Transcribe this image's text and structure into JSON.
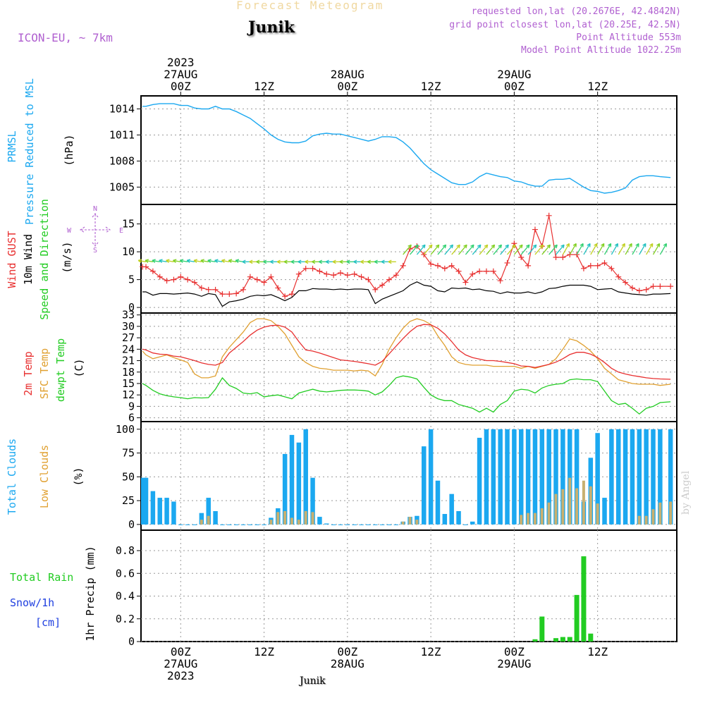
{
  "header": {
    "title": "Forecast Meteogram",
    "location": "Junik",
    "model": "ICON-EU, ~ 7km",
    "requested": "requested lon,lat (20.2676E, 42.4842N)",
    "gridpoint": "grid point closest lon,lat (20.25E, 42.5N)",
    "point_altitude": "Point Altitude 553m",
    "model_altitude": "Model Point Altitude 1022.25m",
    "credit": "by Angel",
    "footer_location": "Junik"
  },
  "colors": {
    "pressure": "#1ba8f0",
    "gust": "#e83030",
    "wind": "#000000",
    "wind_dir": "#22cc22",
    "temp2m": "#e83030",
    "sfc": "#e0a030",
    "dewpt": "#22cc22",
    "total_cloud": "#1ba8f0",
    "low_cloud": "#c8b070",
    "rain": "#22cc22",
    "snow": "#2040e0",
    "purple": "#b060d0"
  },
  "time_axis": {
    "top": [
      {
        "t": 0,
        "lines": [
          "2023",
          "27AUG",
          "00Z"
        ]
      },
      {
        "t": 12,
        "lines": [
          "12Z"
        ]
      },
      {
        "t": 24,
        "lines": [
          "28AUG",
          "00Z"
        ]
      },
      {
        "t": 36,
        "lines": [
          "12Z"
        ]
      },
      {
        "t": 48,
        "lines": [
          "29AUG",
          "00Z"
        ]
      },
      {
        "t": 60,
        "lines": [
          "12Z"
        ]
      }
    ],
    "bottom": [
      {
        "t": 0,
        "lines": [
          "00Z",
          "27AUG",
          "2023"
        ]
      },
      {
        "t": 12,
        "lines": [
          "12Z"
        ]
      },
      {
        "t": 24,
        "lines": [
          "00Z",
          "28AUG"
        ]
      },
      {
        "t": 36,
        "lines": [
          "12Z"
        ]
      },
      {
        "t": 48,
        "lines": [
          "00Z",
          "29AUG"
        ]
      },
      {
        "t": 60,
        "lines": [
          "12Z"
        ]
      }
    ]
  },
  "compass": {
    "n": "N",
    "s": "S",
    "w": "W",
    "e": "E"
  },
  "chart_data": [
    {
      "type": "line",
      "id": "pressure",
      "labels": [
        "PRMSL",
        "Pressure Reduced to MSL"
      ],
      "ylabel": "(hPa)",
      "yticks": [
        1005,
        1008,
        1011,
        1014
      ],
      "ylim": [
        1003,
        1015.5
      ],
      "x": [
        -5.5,
        -5,
        -4,
        -3,
        -2,
        -1,
        0,
        1,
        2,
        3,
        4,
        5,
        6,
        7,
        8,
        9,
        10,
        11,
        12,
        13,
        14,
        15,
        16,
        17,
        18,
        19,
        20,
        21,
        22,
        23,
        24,
        25,
        26,
        27,
        28,
        29,
        30,
        31,
        32,
        33,
        34,
        35,
        36,
        37,
        38,
        39,
        40,
        41,
        42,
        43,
        44,
        45,
        46,
        47,
        48,
        49,
        50,
        51,
        52,
        53,
        54,
        55,
        56,
        57,
        58,
        59,
        60,
        61,
        62,
        63,
        64,
        65,
        66,
        67,
        68,
        69,
        70.5
      ],
      "series": [
        {
          "values": [
            1014.3,
            1014.3,
            1014.5,
            1014.6,
            1014.6,
            1014.6,
            1014.4,
            1014.4,
            1014.1,
            1014.0,
            1014.0,
            1014.3,
            1014.0,
            1014.0,
            1013.7,
            1013.3,
            1012.9,
            1012.3,
            1011.7,
            1011.0,
            1010.5,
            1010.2,
            1010.1,
            1010.1,
            1010.3,
            1010.9,
            1011.1,
            1011.2,
            1011.1,
            1011.1,
            1010.9,
            1010.7,
            1010.5,
            1010.3,
            1010.5,
            1010.8,
            1010.8,
            1010.7,
            1010.2,
            1009.5,
            1008.6,
            1007.7,
            1007.0,
            1006.5,
            1006.0,
            1005.5,
            1005.3,
            1005.3,
            1005.6,
            1006.2,
            1006.6,
            1006.4,
            1006.2,
            1006.1,
            1005.7,
            1005.6,
            1005.3,
            1005.1,
            1005.1,
            1005.8,
            1005.9,
            1005.9,
            1006.0,
            1005.5,
            1005.0,
            1004.6,
            1004.5,
            1004.3,
            1004.4,
            1004.6,
            1004.9,
            1005.8,
            1006.2,
            1006.3,
            1006.3,
            1006.2,
            1006.1
          ]
        }
      ]
    },
    {
      "type": "line",
      "id": "wind",
      "labels": [
        "Wind GUST",
        "10m Wind",
        "Speed and Direction"
      ],
      "ylabel": "(m/s)",
      "yticks": [
        0,
        5,
        10,
        15
      ],
      "ylim": [
        -1,
        18.5
      ],
      "x": [
        -5.5,
        -5,
        -4,
        -3,
        -2,
        -1,
        0,
        1,
        2,
        3,
        4,
        5,
        6,
        7,
        8,
        9,
        10,
        11,
        12,
        13,
        14,
        15,
        16,
        17,
        18,
        19,
        20,
        21,
        22,
        23,
        24,
        25,
        26,
        27,
        28,
        29,
        30,
        31,
        32,
        33,
        34,
        35,
        36,
        37,
        38,
        39,
        40,
        41,
        42,
        43,
        44,
        45,
        46,
        47,
        48,
        49,
        50,
        51,
        52,
        53,
        54,
        55,
        56,
        57,
        58,
        59,
        60,
        61,
        62,
        63,
        64,
        65,
        66,
        67,
        68,
        69,
        70.5
      ],
      "series": [
        {
          "name": "Wind GUST",
          "values": [
            7.3,
            7.3,
            6.5,
            5.5,
            4.8,
            5.0,
            5.5,
            5.0,
            4.5,
            3.5,
            3.2,
            3.2,
            2.4,
            2.4,
            2.5,
            3.2,
            5.5,
            5.0,
            4.5,
            5.5,
            3.5,
            2.0,
            2.4,
            6.0,
            7.0,
            7.0,
            6.5,
            6.0,
            5.8,
            6.2,
            5.8,
            6.0,
            5.5,
            5.0,
            3.2,
            4.0,
            5.0,
            5.8,
            7.5,
            10.5,
            11.0,
            9.5,
            7.8,
            7.5,
            7.0,
            7.5,
            6.5,
            4.5,
            6.0,
            6.5,
            6.5,
            6.5,
            4.8,
            8.0,
            11.5,
            9.0,
            7.5,
            14.0,
            11.0,
            16.5,
            9.0,
            9.0,
            9.5,
            9.5,
            7.0,
            7.5,
            7.5,
            8.0,
            7.0,
            5.5,
            4.5,
            3.5,
            3.0,
            3.2,
            3.8,
            3.8,
            3.8
          ]
        },
        {
          "name": "10m Wind",
          "values": [
            2.8,
            2.8,
            2.2,
            2.5,
            2.5,
            2.4,
            2.5,
            2.6,
            2.4,
            2.0,
            2.5,
            2.3,
            0.2,
            1.0,
            1.2,
            1.5,
            2.0,
            2.2,
            2.1,
            2.3,
            1.8,
            1.2,
            1.8,
            3.0,
            3.0,
            3.4,
            3.3,
            3.3,
            3.2,
            3.3,
            3.2,
            3.3,
            3.3,
            3.2,
            0.7,
            1.5,
            2.0,
            2.5,
            3.0,
            4.0,
            4.6,
            4.0,
            3.8,
            3.0,
            2.8,
            3.5,
            3.4,
            3.5,
            3.2,
            3.3,
            3.0,
            2.9,
            2.5,
            2.8,
            2.6,
            2.6,
            2.8,
            2.5,
            2.8,
            3.4,
            3.5,
            3.8,
            4.0,
            4.0,
            4.0,
            3.8,
            3.2,
            3.3,
            3.4,
            2.8,
            2.6,
            2.4,
            2.3,
            2.2,
            2.4,
            2.4,
            2.5
          ]
        }
      ]
    },
    {
      "type": "line",
      "id": "temperature",
      "labels": [
        "2m Temp",
        "SFC Temp",
        "dewpt Temp"
      ],
      "ylabel": "(C)",
      "yticks": [
        6,
        9,
        12,
        15,
        18,
        21,
        24,
        27,
        30,
        33
      ],
      "ylim": [
        5,
        33.5
      ],
      "x": [
        -5.5,
        -5,
        -4,
        -3,
        -2,
        -1,
        0,
        1,
        2,
        3,
        4,
        5,
        6,
        7,
        8,
        9,
        10,
        11,
        12,
        13,
        14,
        15,
        16,
        17,
        18,
        19,
        20,
        21,
        22,
        23,
        24,
        25,
        26,
        27,
        28,
        29,
        30,
        31,
        32,
        33,
        34,
        35,
        36,
        37,
        38,
        39,
        40,
        41,
        42,
        43,
        44,
        45,
        46,
        47,
        48,
        49,
        50,
        51,
        52,
        53,
        54,
        55,
        56,
        57,
        58,
        59,
        60,
        61,
        62,
        63,
        64,
        65,
        66,
        67,
        68,
        69,
        70.5
      ],
      "series": [
        {
          "name": "2m Temp",
          "values": [
            24.0,
            23.8,
            23.0,
            22.7,
            22.6,
            22.2,
            22.0,
            21.5,
            21.0,
            20.4,
            20.0,
            19.8,
            20.5,
            23.0,
            24.5,
            26.0,
            27.7,
            29.0,
            29.8,
            30.2,
            30.3,
            29.8,
            28.5,
            26.0,
            23.8,
            23.5,
            23.0,
            22.4,
            21.8,
            21.2,
            21.0,
            20.8,
            20.5,
            20.2,
            19.8,
            20.8,
            22.8,
            24.8,
            26.8,
            28.6,
            30.0,
            30.5,
            30.4,
            29.5,
            28.0,
            26.0,
            23.8,
            22.5,
            21.8,
            21.4,
            21.0,
            21.0,
            20.8,
            20.5,
            20.2,
            19.6,
            19.5,
            19.2,
            19.6,
            20.0,
            20.6,
            21.5,
            22.6,
            23.2,
            23.2,
            22.7,
            21.8,
            20.5,
            19.0,
            18.0,
            17.5,
            17.1,
            16.8,
            16.5,
            16.3,
            16.2,
            16.1
          ]
        },
        {
          "name": "SFC Temp",
          "values": [
            23.5,
            22.5,
            21.5,
            22.0,
            22.5,
            21.8,
            21.2,
            20.5,
            17.5,
            16.5,
            16.5,
            17.0,
            22.0,
            24.5,
            26.5,
            28.5,
            31.0,
            32.0,
            32.0,
            31.5,
            30.0,
            28.0,
            25.0,
            22.0,
            20.5,
            19.5,
            19.0,
            18.8,
            18.5,
            18.5,
            18.5,
            18.3,
            18.5,
            18.3,
            17.0,
            20.0,
            24.0,
            27.0,
            29.5,
            31.3,
            32.0,
            31.5,
            30.5,
            27.5,
            25.0,
            22.0,
            20.5,
            20.0,
            19.8,
            19.8,
            19.8,
            19.5,
            19.5,
            19.5,
            19.5,
            19.0,
            19.5,
            19.0,
            19.5,
            20.0,
            21.5,
            24.0,
            26.7,
            26.2,
            25.0,
            23.5,
            21.5,
            19.0,
            17.5,
            16.0,
            15.5,
            15.0,
            14.8,
            14.8,
            14.8,
            14.5,
            14.8
          ]
        },
        {
          "name": "dewpt Temp",
          "values": [
            15.0,
            14.5,
            13.2,
            12.3,
            11.8,
            11.5,
            11.3,
            11.0,
            11.3,
            11.2,
            11.3,
            13.5,
            16.5,
            14.5,
            13.7,
            12.5,
            12.3,
            12.6,
            11.5,
            11.8,
            12.0,
            11.5,
            11.0,
            12.5,
            13.0,
            13.5,
            13.0,
            12.8,
            13.0,
            13.2,
            13.3,
            13.3,
            13.2,
            13.0,
            12.0,
            12.8,
            14.5,
            16.5,
            17.0,
            16.7,
            16.2,
            14.0,
            12.0,
            11.0,
            10.5,
            10.5,
            9.5,
            9.0,
            8.5,
            7.5,
            8.5,
            7.5,
            9.5,
            10.5,
            13.0,
            13.5,
            13.3,
            12.5,
            13.8,
            14.5,
            14.8,
            15.0,
            16.0,
            16.2,
            16.0,
            16.0,
            15.5,
            13.0,
            10.5,
            9.5,
            9.8,
            8.5,
            7.0,
            8.5,
            9.0,
            10.0,
            10.2
          ]
        }
      ]
    },
    {
      "type": "bar",
      "id": "clouds",
      "labels": [
        "Total Clouds",
        "Low Clouds"
      ],
      "ylabel": "(%)",
      "yticks": [
        0,
        25,
        50,
        75,
        100
      ],
      "ylim": [
        -6,
        108
      ],
      "x": [
        -5.5,
        -5,
        -4,
        -3,
        -2,
        -1,
        0,
        1,
        2,
        3,
        4,
        5,
        6,
        7,
        8,
        9,
        10,
        11,
        12,
        13,
        14,
        15,
        16,
        17,
        18,
        19,
        20,
        21,
        22,
        23,
        24,
        25,
        26,
        27,
        28,
        29,
        30,
        31,
        32,
        33,
        34,
        35,
        36,
        37,
        38,
        39,
        40,
        41,
        42,
        43,
        44,
        45,
        46,
        47,
        48,
        49,
        50,
        51,
        52,
        53,
        54,
        55,
        56,
        57,
        58,
        59,
        60,
        61,
        62,
        63,
        64,
        65,
        66,
        67,
        68,
        69,
        70.5
      ],
      "series": [
        {
          "name": "Total Clouds",
          "values": [
            49,
            49,
            35,
            28,
            28,
            24,
            0,
            0,
            0,
            12,
            28,
            14,
            0,
            0,
            0,
            0,
            0,
            0,
            0,
            7,
            17,
            74,
            94,
            86,
            100,
            49,
            8,
            1,
            0,
            0,
            0,
            0,
            0,
            0,
            0,
            0,
            0,
            0,
            3,
            8,
            9,
            82,
            100,
            46,
            11,
            32,
            14,
            0,
            3,
            91,
            100,
            100,
            100,
            100,
            100,
            100,
            100,
            100,
            100,
            100,
            100,
            100,
            100,
            100,
            24,
            70,
            96,
            28,
            100,
            100,
            100,
            100,
            100,
            100,
            100,
            100,
            100
          ]
        },
        {
          "name": "Low Clouds",
          "values": [
            0,
            0,
            0,
            0,
            0,
            0,
            0,
            0,
            0,
            5,
            9,
            0,
            0,
            0,
            0,
            0,
            0,
            0,
            0,
            5,
            13,
            14,
            7,
            5,
            14,
            13,
            0,
            0,
            0,
            0,
            0,
            0,
            0,
            0,
            0,
            0,
            0,
            0,
            3,
            8,
            5,
            0,
            0,
            0,
            0,
            0,
            0,
            0,
            0,
            0,
            0,
            0,
            0,
            0,
            0,
            10,
            12,
            12,
            17,
            23,
            32,
            37,
            49,
            38,
            46,
            40,
            22,
            0,
            0,
            0,
            0,
            0,
            9,
            9,
            16,
            23,
            24
          ]
        }
      ]
    },
    {
      "type": "bar",
      "id": "precip",
      "labels": [
        "Total  Rain",
        "Snow/1h",
        "[cm]"
      ],
      "ylabel": "1hr Precip (mm)",
      "yticks": [
        0,
        0.2,
        0.4,
        0.6,
        0.8
      ],
      "ylim": [
        0,
        0.98
      ],
      "x": [
        51,
        52,
        54,
        55,
        56,
        57,
        58,
        59
      ],
      "series": [
        {
          "name": "Total Rain",
          "values": [
            0.02,
            0.22,
            0.03,
            0.04,
            0.04,
            0.41,
            0.75,
            0.07
          ]
        }
      ]
    }
  ]
}
